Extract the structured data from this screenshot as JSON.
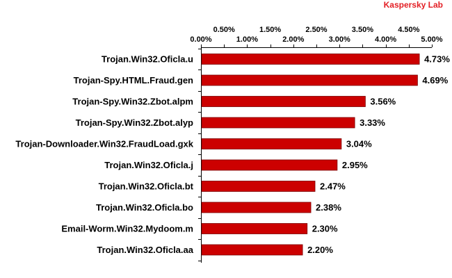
{
  "brand": {
    "label": "Kaspersky Lab",
    "color": "#e31e24"
  },
  "chart_data": {
    "type": "bar",
    "orientation": "horizontal",
    "categories": [
      "Trojan.Win32.Oficla.u",
      "Trojan-Spy.HTML.Fraud.gen",
      "Trojan-Spy.Win32.Zbot.alpm",
      "Trojan-Spy.Win32.Zbot.alyp",
      "Trojan-Downloader.Win32.FraudLoad.gxk",
      "Trojan.Win32.Oficla.j",
      "Trojan.Win32.Oficla.bt",
      "Trojan.Win32.Oficla.bo",
      "Email-Worm.Win32.Mydoom.m",
      "Trojan.Win32.Oficla.aa"
    ],
    "values": [
      4.73,
      4.69,
      3.56,
      3.33,
      3.04,
      2.95,
      2.47,
      2.38,
      2.3,
      2.2
    ],
    "value_labels": [
      "4.73%",
      "4.69%",
      "3.56%",
      "3.33%",
      "3.04%",
      "2.95%",
      "2.47%",
      "2.38%",
      "2.30%",
      "2.20%"
    ],
    "xlim": [
      0,
      5
    ],
    "x_ticks": [
      0,
      0.5,
      1,
      1.5,
      2,
      2.5,
      3,
      3.5,
      4,
      4.5,
      5
    ],
    "x_tick_labels_upper": [
      "0.50%",
      "1.50%",
      "2.50%",
      "3.50%",
      "4.50%"
    ],
    "x_tick_labels_lower": [
      "0.00%",
      "1.00%",
      "2.00%",
      "3.00%",
      "4.00%",
      "5.00%"
    ],
    "axis_position": "top",
    "grid": false,
    "legend": "none",
    "bar_color": "#cc0000",
    "bar_border_color": "#7a0000",
    "title": "",
    "xlabel": "",
    "ylabel": ""
  }
}
